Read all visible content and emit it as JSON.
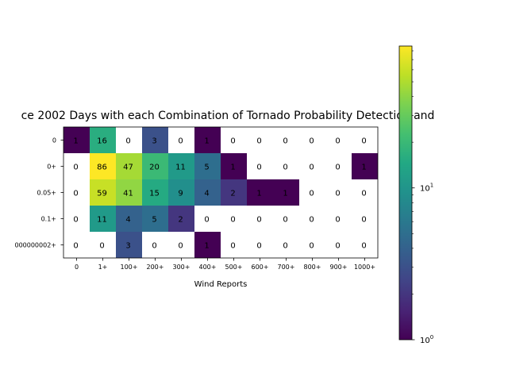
{
  "chart_data": {
    "type": "heatmap",
    "title": "ce 2002 Days with each Combination of Tornado Probability Detection and",
    "xlabel": "Wind Reports",
    "ylabel": "",
    "x_categories": [
      "0",
      "1+",
      "100+",
      "200+",
      "300+",
      "400+",
      "500+",
      "600+",
      "700+",
      "800+",
      "900+",
      "1000+"
    ],
    "y_categories": [
      "0",
      "0+",
      "0.05+",
      "0.1+",
      "000000002+"
    ],
    "values": [
      [
        1,
        16,
        0,
        3,
        0,
        1,
        0,
        0,
        0,
        0,
        0,
        0
      ],
      [
        0,
        86,
        47,
        20,
        11,
        5,
        1,
        0,
        0,
        0,
        0,
        1
      ],
      [
        0,
        59,
        41,
        15,
        9,
        4,
        2,
        1,
        1,
        0,
        0,
        0
      ],
      [
        0,
        11,
        4,
        5,
        2,
        0,
        0,
        0,
        0,
        0,
        0,
        0
      ],
      [
        0,
        0,
        3,
        0,
        0,
        1,
        0,
        0,
        0,
        0,
        0,
        0
      ]
    ],
    "color_scale": "log",
    "colormap": "viridis",
    "zero_color": "#ffffff",
    "colorbar": {
      "min": 1,
      "max": 86,
      "ticks": [
        {
          "value": 1,
          "base": "10",
          "exp": "0"
        },
        {
          "value": 10,
          "base": "10",
          "exp": "1"
        }
      ]
    },
    "grid": false
  }
}
